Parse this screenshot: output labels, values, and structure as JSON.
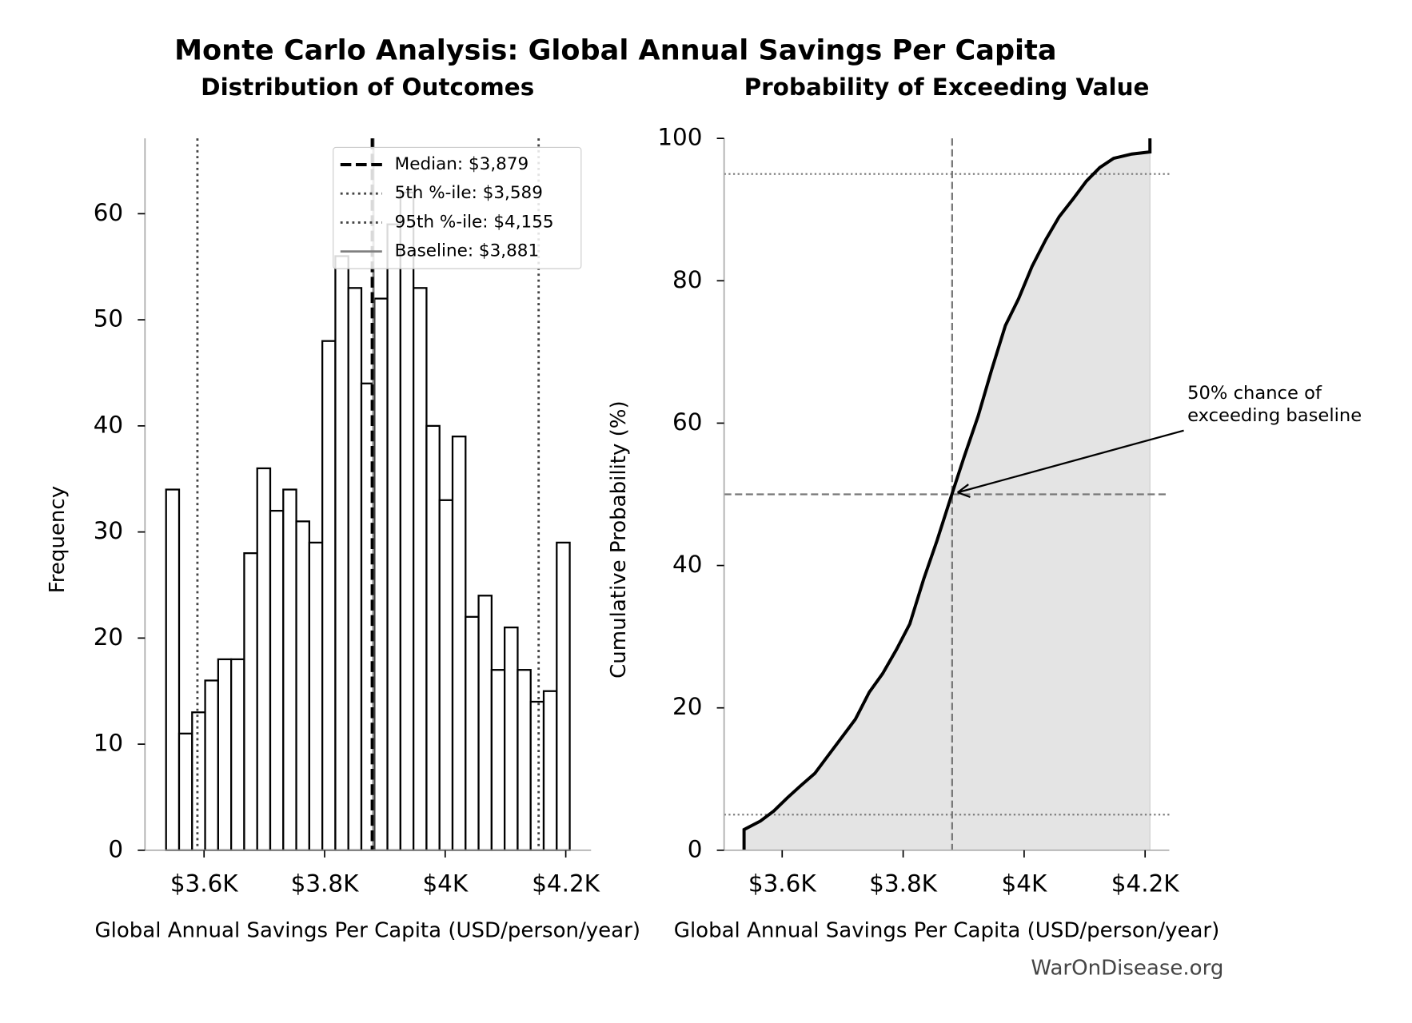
{
  "title": "Monte Carlo Analysis: Global Annual Savings Per Capita",
  "source": "WarOnDisease.org",
  "chart_data": [
    {
      "type": "histogram",
      "title": "Distribution of Outcomes",
      "xlabel": "Global Annual Savings Per Capita (USD/person/year)",
      "ylabel": "Frequency",
      "bins": [
        3537,
        3558.6,
        3580.2,
        3601.8,
        3623.4,
        3645,
        3666.6,
        3688.2,
        3709.8,
        3731.4,
        3753,
        3774.6,
        3796.2,
        3817.8,
        3839.4,
        3861,
        3882.6,
        3904.2,
        3925.8,
        3947.4,
        3969,
        3990.6,
        4012.2,
        4033.8,
        4055.4,
        4077,
        4098.6,
        4120.2,
        4141.8,
        4163.4,
        4185,
        4206.6
      ],
      "values": [
        34,
        11,
        13,
        16,
        18,
        18,
        28,
        36,
        32,
        34,
        31,
        29,
        48,
        56,
        53,
        44,
        52,
        59,
        62,
        53,
        40,
        33,
        39,
        22,
        24,
        17,
        21,
        17,
        14,
        15,
        29
      ],
      "color": "#ffffff",
      "edgecolor": "#000000",
      "xlim": [
        3502,
        4242
      ],
      "ylim": [
        0,
        67.1
      ],
      "xticks": [
        {
          "value": 3600,
          "label": "$3.6K"
        },
        {
          "value": 3800,
          "label": "$3.8K"
        },
        {
          "value": 4000,
          "label": "$4K"
        },
        {
          "value": 4200,
          "label": "$4.2K"
        }
      ],
      "yticks": [
        0,
        10,
        20,
        30,
        40,
        50,
        60
      ],
      "legend": "upper right",
      "reference_lines": [
        {
          "name": "Median: $3,879",
          "value": 3879,
          "color": "#000000",
          "style": "dashed"
        },
        {
          "name": "5th %-ile: $3,589",
          "value": 3589,
          "color": "#444444",
          "style": "dotted"
        },
        {
          "name": "95th %-ile: $4,155",
          "value": 4155,
          "color": "#444444",
          "style": "dotted"
        },
        {
          "name": "Baseline: $3,881",
          "value": 3881,
          "color": "#808080",
          "style": "solid"
        }
      ]
    },
    {
      "type": "line",
      "title": "Probability of Exceeding Value",
      "xlabel": "Global Annual Savings Per Capita (USD/person/year)",
      "ylabel": "Cumulative Probability (%)",
      "x": [
        3537,
        3537,
        3564,
        3586,
        3609,
        3631,
        3654,
        3676,
        3699,
        3721,
        3744,
        3766,
        3789,
        3811,
        3834,
        3856,
        3879,
        3901,
        3924,
        3946,
        3969,
        3991,
        4013,
        4036,
        4058,
        4081,
        4103,
        4125,
        4148,
        4178,
        4208,
        4208
      ],
      "values": [
        0,
        2.9,
        4.1,
        5.5,
        7.4,
        9.1,
        10.8,
        13.3,
        15.9,
        18.4,
        22.2,
        24.8,
        28.2,
        31.8,
        38.1,
        43.5,
        49.6,
        55.3,
        61.0,
        67.4,
        73.7,
        77.5,
        82.0,
        85.8,
        89.0,
        91.5,
        94.0,
        95.9,
        97.2,
        97.8,
        98.1,
        100
      ],
      "color": "#000000",
      "fill_color": "#e4e4e4",
      "xlim": [
        3504,
        4240
      ],
      "ylim": [
        0,
        100
      ],
      "xticks": [
        {
          "value": 3600,
          "label": "$3.6K"
        },
        {
          "value": 3800,
          "label": "$3.8K"
        },
        {
          "value": 4000,
          "label": "$4K"
        },
        {
          "value": 4200,
          "label": "$4.2K"
        }
      ],
      "yticks": [
        0,
        20,
        40,
        60,
        80,
        100
      ],
      "hlines": [
        {
          "value": 5,
          "style": "dotted"
        },
        {
          "value": 50,
          "style": "dashed"
        },
        {
          "value": 95,
          "style": "dotted"
        }
      ],
      "vlines": [
        {
          "value": 3881,
          "style": "dashed"
        }
      ],
      "annotation": [
        "50% chance of",
        "exceeding baseline"
      ]
    }
  ]
}
